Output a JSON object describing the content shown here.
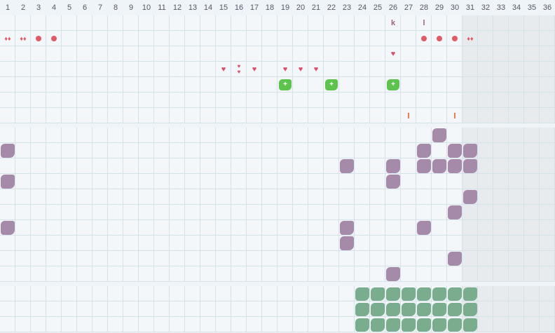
{
  "days": [
    "1",
    "2",
    "3",
    "4",
    "5",
    "6",
    "7",
    "8",
    "9",
    "10",
    "11",
    "12",
    "13",
    "14",
    "15",
    "16",
    "17",
    "18",
    "19",
    "20",
    "21",
    "22",
    "23",
    "24",
    "25",
    "26",
    "27",
    "28",
    "29",
    "30",
    "31",
    "32",
    "33",
    "34",
    "35",
    "36"
  ],
  "shaded_from_day": 31,
  "colors": {
    "grid": "#d5e2ea",
    "cell": "#f3f7fa",
    "shaded": "#e8ebed",
    "red": "#e05a66",
    "pink": "#d94f6e",
    "orange": "#ef7a4e",
    "purple": "#b07a9e",
    "mauve": "#a68aaa",
    "green": "#5ec24f",
    "sage": "#79ad8e",
    "brown": "#a0647e"
  },
  "letters": [
    {
      "day": 26,
      "row": 0,
      "text": "k"
    },
    {
      "day": 28,
      "row": 0,
      "text": "l"
    }
  ],
  "top_marks": [
    {
      "day": 1,
      "row": 1,
      "kind": "drops"
    },
    {
      "day": 2,
      "row": 1,
      "kind": "drops"
    },
    {
      "day": 3,
      "row": 1,
      "kind": "dot"
    },
    {
      "day": 4,
      "row": 1,
      "kind": "dot"
    },
    {
      "day": 28,
      "row": 1,
      "kind": "dot"
    },
    {
      "day": 29,
      "row": 1,
      "kind": "dot"
    },
    {
      "day": 30,
      "row": 1,
      "kind": "dot"
    },
    {
      "day": 31,
      "row": 1,
      "kind": "drops"
    },
    {
      "day": 15,
      "row": 3,
      "kind": "heart"
    },
    {
      "day": 16,
      "row": 3,
      "kind": "hearts2"
    },
    {
      "day": 17,
      "row": 3,
      "kind": "heart"
    },
    {
      "day": 19,
      "row": 3,
      "kind": "heart"
    },
    {
      "day": 20,
      "row": 3,
      "kind": "heart"
    },
    {
      "day": 21,
      "row": 3,
      "kind": "heart"
    },
    {
      "day": 26,
      "row": 2,
      "kind": "heart"
    },
    {
      "day": 19,
      "row": 4,
      "kind": "green-plus"
    },
    {
      "day": 22,
      "row": 4,
      "kind": "green-plus"
    },
    {
      "day": 26,
      "row": 4,
      "kind": "green-plus"
    },
    {
      "day": 27,
      "row": 6,
      "kind": "tick"
    },
    {
      "day": 30,
      "row": 6,
      "kind": "tick"
    }
  ],
  "mid_blobs": [
    {
      "day": 29,
      "row": 0
    },
    {
      "day": 1,
      "row": 1
    },
    {
      "day": 28,
      "row": 1
    },
    {
      "day": 30,
      "row": 1
    },
    {
      "day": 31,
      "row": 1
    },
    {
      "day": 23,
      "row": 2
    },
    {
      "day": 26,
      "row": 2
    },
    {
      "day": 28,
      "row": 2
    },
    {
      "day": 29,
      "row": 2
    },
    {
      "day": 30,
      "row": 2
    },
    {
      "day": 31,
      "row": 2
    },
    {
      "day": 1,
      "row": 3
    },
    {
      "day": 26,
      "row": 3
    },
    {
      "day": 31,
      "row": 4
    },
    {
      "day": 30,
      "row": 5
    },
    {
      "day": 1,
      "row": 6
    },
    {
      "day": 23,
      "row": 6
    },
    {
      "day": 28,
      "row": 6
    },
    {
      "day": 23,
      "row": 7
    },
    {
      "day": 30,
      "row": 8
    },
    {
      "day": 26,
      "row": 9
    }
  ],
  "bottom_blobs": {
    "from_day": 24,
    "to_day": 31,
    "rows": 3
  }
}
